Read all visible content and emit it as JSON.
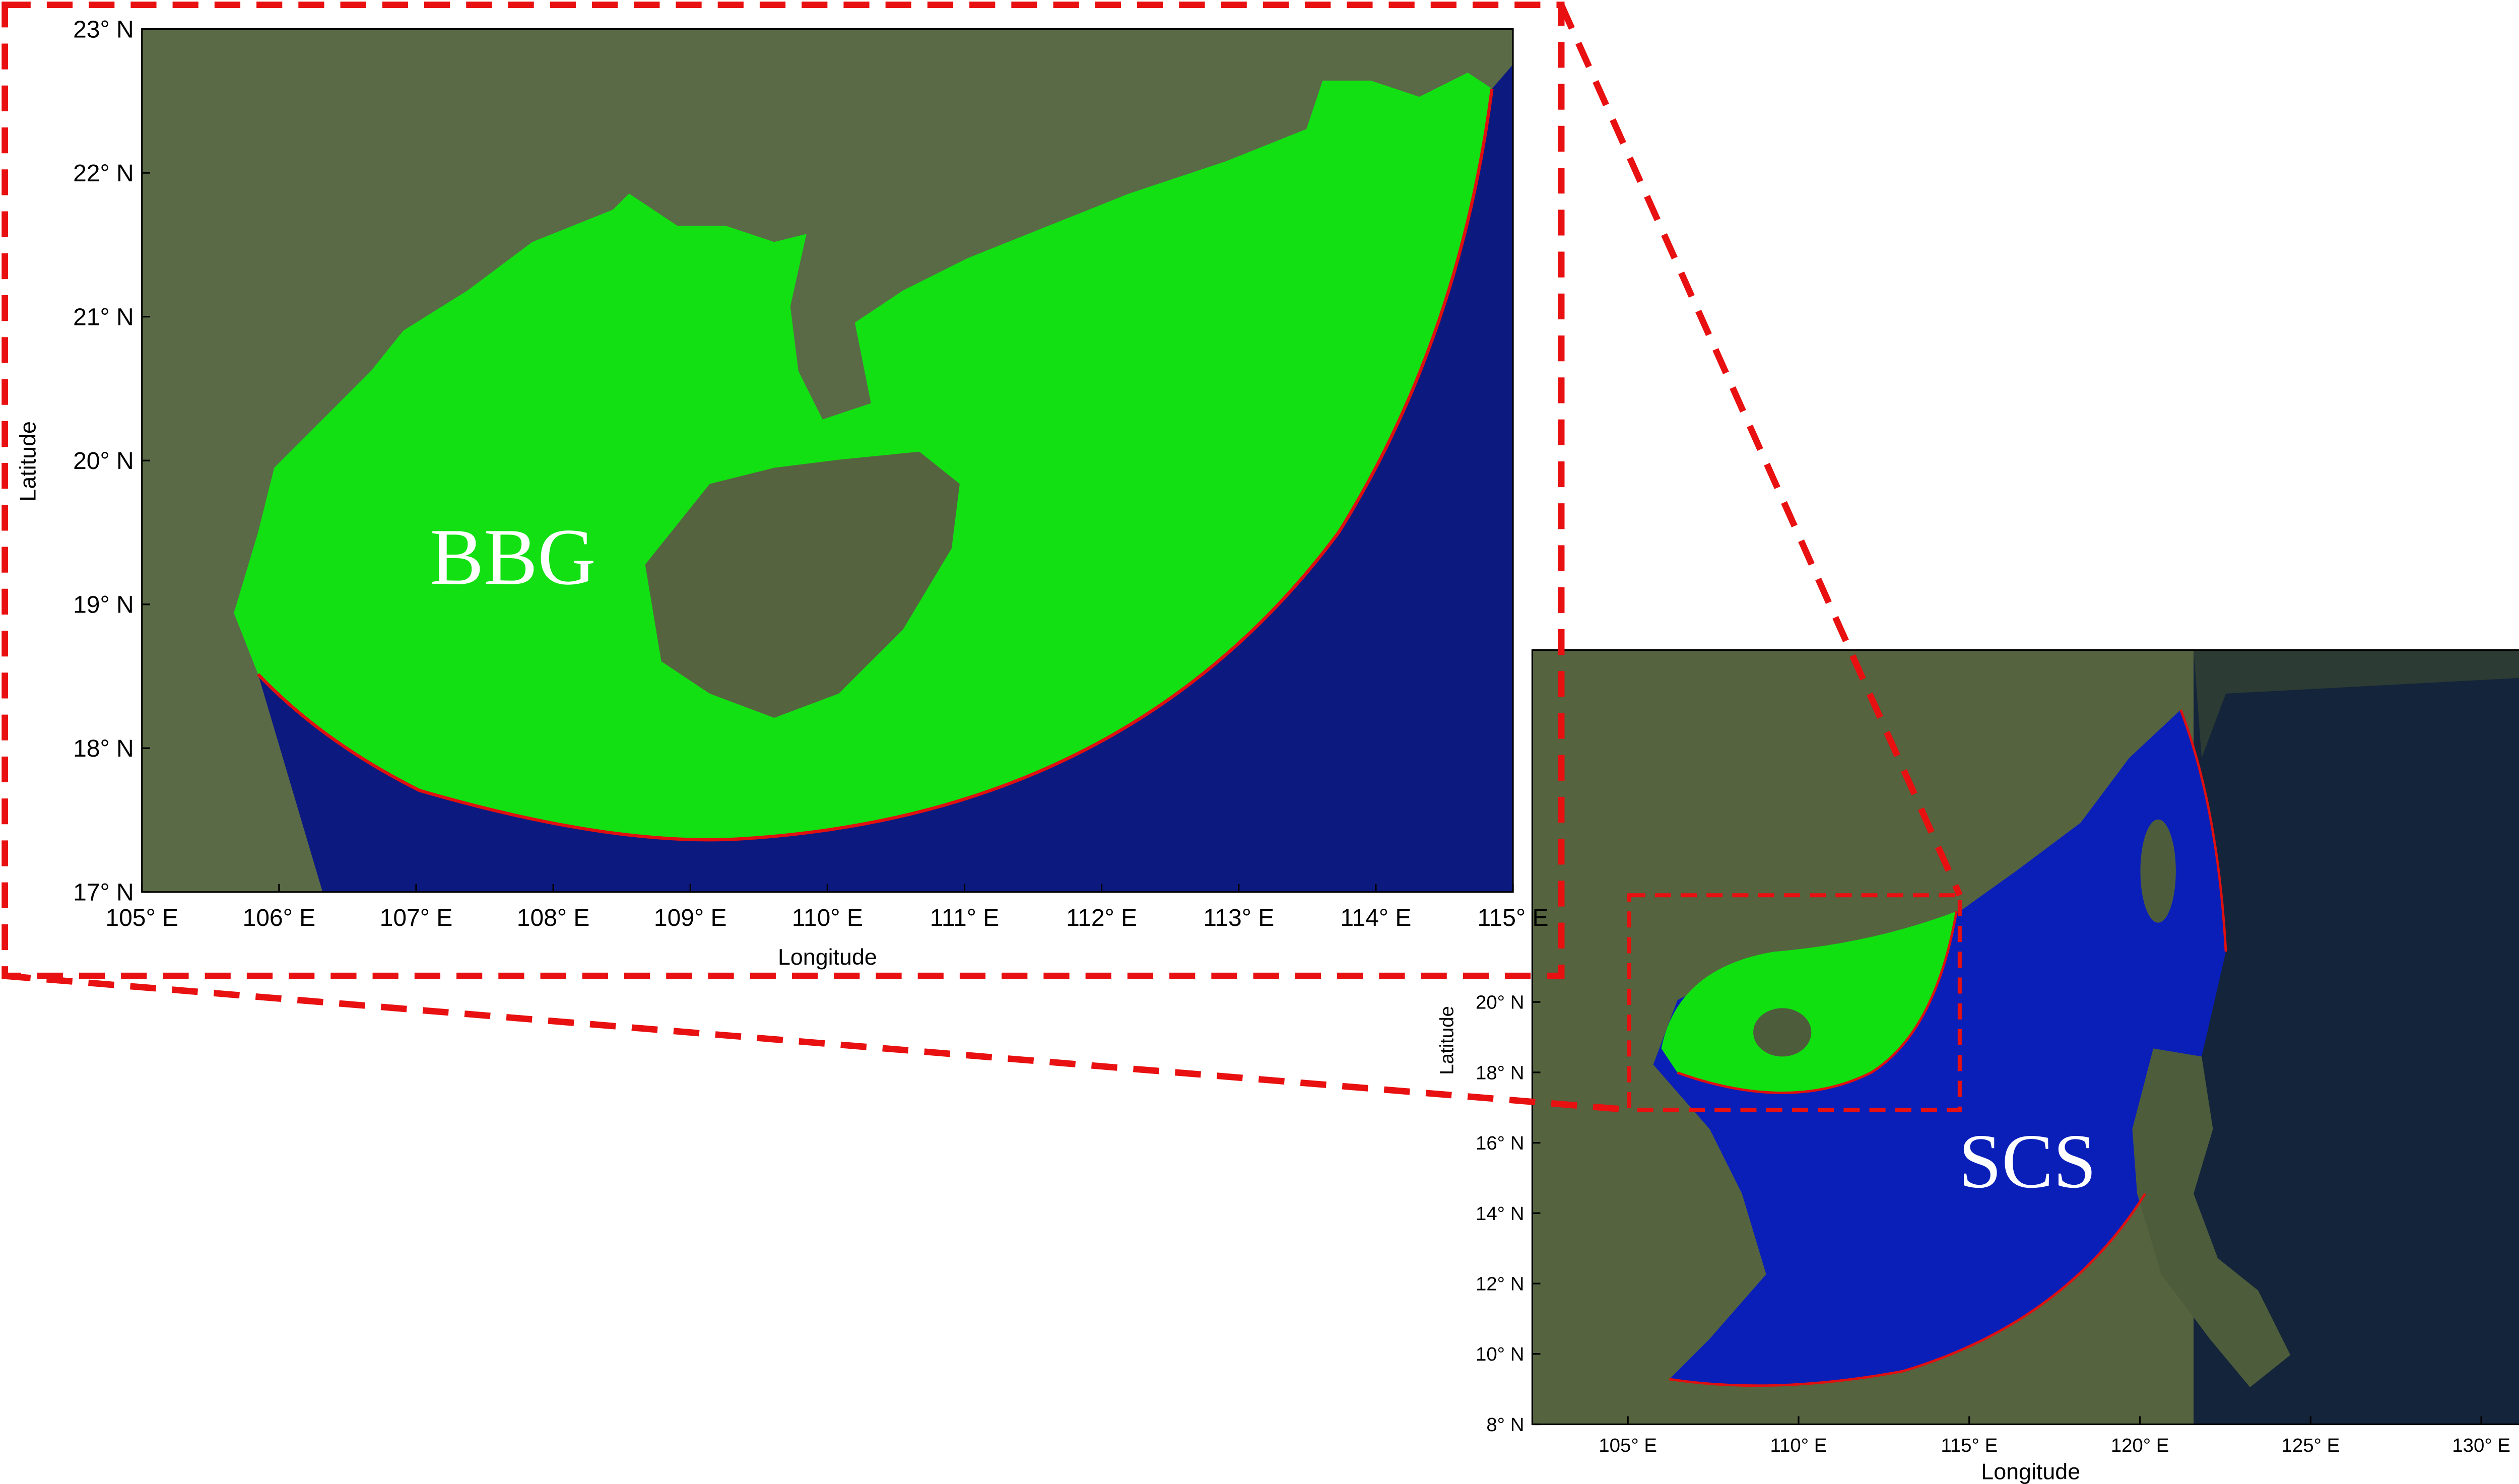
{
  "inset": {
    "region_label": "BBG",
    "xlabel": "Longitude",
    "ylabel": "Latitude",
    "xlim": [
      105,
      115
    ],
    "ylim": [
      17,
      23
    ],
    "xticks": [
      {
        "value": 105,
        "label": "105° E"
      },
      {
        "value": 106,
        "label": "106° E"
      },
      {
        "value": 107,
        "label": "107° E"
      },
      {
        "value": 108,
        "label": "108° E"
      },
      {
        "value": 109,
        "label": "109° E"
      },
      {
        "value": 110,
        "label": "110° E"
      },
      {
        "value": 111,
        "label": "111° E"
      },
      {
        "value": 112,
        "label": "112° E"
      },
      {
        "value": 113,
        "label": "113° E"
      },
      {
        "value": 114,
        "label": "114° E"
      },
      {
        "value": 115,
        "label": "115° E"
      }
    ],
    "yticks": [
      {
        "value": 17,
        "label": "17° N"
      },
      {
        "value": 18,
        "label": "18° N"
      },
      {
        "value": 19,
        "label": "19° N"
      },
      {
        "value": 20,
        "label": "20° N"
      },
      {
        "value": 21,
        "label": "21° N"
      },
      {
        "value": 22,
        "label": "22° N"
      },
      {
        "value": 23,
        "label": "23° N"
      }
    ]
  },
  "overview": {
    "region_label": "SCS",
    "xlabel": "Longitude",
    "ylabel": "Latitude",
    "xlim": [
      102.2,
      131.4
    ],
    "ylim": [
      8,
      30
    ],
    "xticks": [
      {
        "value": 105,
        "label": "105° E"
      },
      {
        "value": 110,
        "label": "110° E"
      },
      {
        "value": 115,
        "label": "115° E"
      },
      {
        "value": 120,
        "label": "120° E"
      },
      {
        "value": 125,
        "label": "125° E"
      },
      {
        "value": 130,
        "label": "130° E"
      }
    ],
    "yticks": [
      {
        "value": 8,
        "label": "8° N"
      },
      {
        "value": 10,
        "label": "10° N"
      },
      {
        "value": 12,
        "label": "12° N"
      },
      {
        "value": 14,
        "label": "14° N"
      },
      {
        "value": 16,
        "label": "16° N"
      },
      {
        "value": 18,
        "label": "18° N"
      },
      {
        "value": 20,
        "label": "20° N"
      }
    ]
  }
}
